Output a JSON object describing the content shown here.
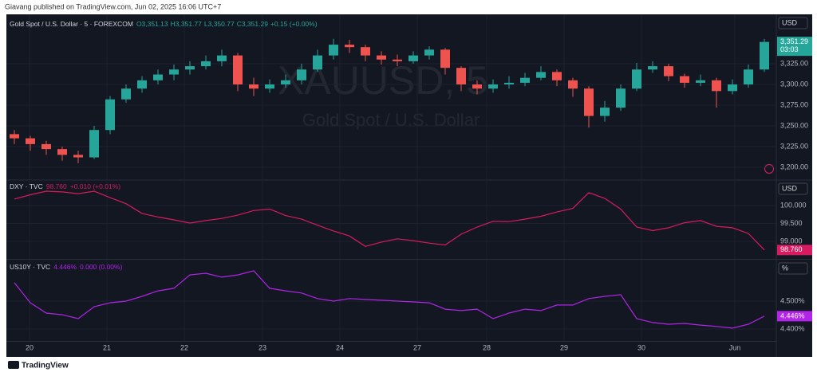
{
  "header": {
    "title": "Giavang published on TradingView.com, Jun 02, 2025 16:06 UTC+7"
  },
  "footer": {
    "brand": "TradingView"
  },
  "chart_data": [
    {
      "type": "candlestick",
      "legend": {
        "title": "Gold Spot / U.S. Dollar · 5 · FOREXCOM",
        "ohlc": [
          "O3,351.13",
          "H3,351.77",
          "L3,350.77",
          "C3,351.29"
        ],
        "change": "+0.15 (+0.00%)"
      },
      "watermark": "XAUUSD, 5",
      "watermark_subtitle": "Gold Spot / U.S. Dollar",
      "axis_unit": "USD",
      "up_color": "#26a69a",
      "down_color": "#ef5350",
      "open": [
        3240,
        3235,
        3228,
        3222,
        3215,
        3212,
        3245,
        3282,
        3295,
        3305,
        3312,
        3318,
        3322,
        3328,
        3335,
        3300,
        3295,
        3300,
        3305,
        3318,
        3335,
        3348,
        3345,
        3335,
        3330,
        3328,
        3335,
        3342,
        3320,
        3300,
        3295,
        3300,
        3302,
        3308,
        3315,
        3305,
        3295,
        3262,
        3272,
        3295,
        3318,
        3322,
        3310,
        3302,
        3305,
        3292,
        3300,
        3318
      ],
      "high": [
        3245,
        3238,
        3232,
        3225,
        3220,
        3250,
        3286,
        3300,
        3310,
        3318,
        3324,
        3328,
        3335,
        3342,
        3338,
        3308,
        3306,
        3312,
        3325,
        3342,
        3355,
        3354,
        3348,
        3340,
        3336,
        3340,
        3346,
        3344,
        3322,
        3305,
        3306,
        3310,
        3314,
        3322,
        3318,
        3308,
        3298,
        3280,
        3300,
        3326,
        3328,
        3325,
        3313,
        3312,
        3308,
        3306,
        3324,
        3355
      ],
      "low": [
        3228,
        3220,
        3215,
        3208,
        3205,
        3210,
        3240,
        3278,
        3290,
        3300,
        3305,
        3312,
        3318,
        3322,
        3292,
        3286,
        3290,
        3296,
        3300,
        3315,
        3330,
        3338,
        3328,
        3324,
        3322,
        3325,
        3330,
        3312,
        3292,
        3288,
        3290,
        3295,
        3298,
        3305,
        3298,
        3285,
        3248,
        3255,
        3268,
        3292,
        3314,
        3304,
        3296,
        3298,
        3272,
        3288,
        3296,
        3315
      ],
      "close": [
        3235,
        3228,
        3222,
        3215,
        3212,
        3245,
        3282,
        3295,
        3305,
        3312,
        3318,
        3322,
        3328,
        3335,
        3300,
        3295,
        3300,
        3305,
        3318,
        3335,
        3348,
        3345,
        3335,
        3330,
        3328,
        3335,
        3342,
        3320,
        3300,
        3295,
        3300,
        3302,
        3308,
        3315,
        3305,
        3295,
        3262,
        3272,
        3295,
        3318,
        3322,
        3310,
        3302,
        3305,
        3292,
        3300,
        3318,
        3351.29
      ],
      "last_label": "3,351.29",
      "countdown": "03:03",
      "xlim": [
        0,
        48
      ],
      "ylim": [
        3185.6,
        3384.6
      ],
      "yticks": [
        {
          "value": 3200,
          "label": "3,200.00"
        },
        {
          "value": 3225,
          "label": "3,225.00"
        },
        {
          "value": 3250,
          "label": "3,250.00"
        },
        {
          "value": 3275,
          "label": "3,275.00"
        },
        {
          "value": 3300,
          "label": "3,300.00"
        },
        {
          "value": 3325,
          "label": "3,325.00"
        }
      ],
      "grid": true
    },
    {
      "type": "line",
      "legend": {
        "title": "DXY · TVC",
        "last": "98.760",
        "change": "+0.010 (+0.01%)"
      },
      "axis_unit": "USD",
      "color": "#d81b60",
      "values": [
        100.18,
        100.3,
        100.4,
        100.38,
        100.33,
        100.4,
        100.22,
        100.05,
        99.78,
        99.68,
        99.6,
        99.51,
        99.58,
        99.64,
        99.73,
        99.86,
        99.9,
        99.72,
        99.62,
        99.45,
        99.29,
        99.15,
        98.86,
        98.98,
        99.07,
        99.02,
        98.95,
        98.9,
        99.2,
        99.4,
        99.56,
        99.55,
        99.62,
        99.7,
        99.82,
        99.92,
        100.36,
        100.2,
        99.9,
        99.4,
        99.3,
        99.38,
        99.52,
        99.58,
        99.42,
        99.38,
        99.22,
        98.76
      ],
      "last_label": "98.760",
      "xlim": [
        0,
        48
      ],
      "ylim": [
        98.511,
        100.711
      ],
      "yticks": [
        {
          "value": 99,
          "label": "99.000"
        },
        {
          "value": 99.5,
          "label": "99.500"
        },
        {
          "value": 100,
          "label": "100.000"
        }
      ],
      "grid": true
    },
    {
      "type": "line",
      "legend": {
        "title": "US10Y · TVC",
        "last": "4.446%",
        "change": "0.000 (0.00%)"
      },
      "axis_unit": "%",
      "color": "#b124e8",
      "values": [
        4.566,
        4.494,
        4.457,
        4.451,
        4.437,
        4.48,
        4.494,
        4.5,
        4.517,
        4.537,
        4.546,
        4.594,
        4.6,
        4.586,
        4.594,
        4.609,
        4.546,
        4.537,
        4.529,
        4.509,
        4.5,
        4.509,
        4.506,
        4.503,
        4.5,
        4.497,
        4.494,
        4.471,
        4.466,
        4.471,
        4.437,
        4.457,
        4.471,
        4.466,
        4.486,
        4.486,
        4.509,
        4.517,
        4.523,
        4.437,
        4.423,
        4.417,
        4.42,
        4.414,
        4.409,
        4.403,
        4.417,
        4.446
      ],
      "last_label": "4.446%",
      "xlim": [
        0,
        48
      ],
      "ylim": [
        4.3571,
        4.6486
      ],
      "yticks": [
        {
          "value": 4.4,
          "label": "4.400%"
        },
        {
          "value": 4.5,
          "label": "4.500%"
        }
      ],
      "xticks": [
        {
          "value": 1.45,
          "label": "20"
        },
        {
          "value": 6.3,
          "label": "21"
        },
        {
          "value": 11.15,
          "label": "22"
        },
        {
          "value": 16.05,
          "label": "23"
        },
        {
          "value": 20.9,
          "label": "24"
        },
        {
          "value": 25.75,
          "label": "27"
        },
        {
          "value": 30.1,
          "label": "28"
        },
        {
          "value": 34.95,
          "label": "29"
        },
        {
          "value": 39.8,
          "label": "30"
        },
        {
          "value": 45.65,
          "label": "Jun"
        }
      ],
      "grid": true
    }
  ]
}
